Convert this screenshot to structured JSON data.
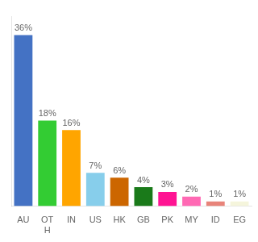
{
  "chart_data": {
    "type": "bar",
    "categories": [
      "AU",
      "OT\nH",
      "IN",
      "US",
      "HK",
      "GB",
      "PK",
      "MY",
      "ID",
      "EG"
    ],
    "values": [
      36,
      18,
      16,
      7,
      6,
      4,
      3,
      2,
      1,
      1
    ],
    "value_labels": [
      "36%",
      "18%",
      "16%",
      "7%",
      "6%",
      "4%",
      "3%",
      "2%",
      "1%",
      "1%"
    ],
    "data_labels": true,
    "colors": [
      "#4472C4",
      "#33CC33",
      "#FFA500",
      "#87CEEB",
      "#CC6600",
      "#1A7A1A",
      "#FF1493",
      "#FF69B4",
      "#E8847A",
      "#F5F5DC"
    ],
    "ylim": [
      0,
      40
    ],
    "grid": false,
    "tick_labels": "x"
  }
}
